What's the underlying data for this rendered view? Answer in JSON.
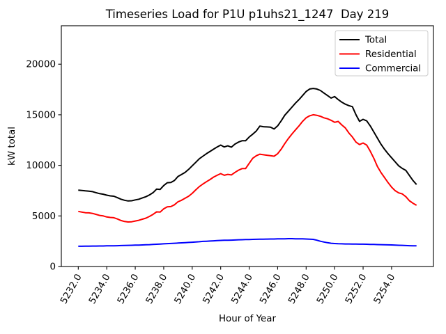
{
  "figure": {
    "background": "#ffffff"
  },
  "chart_data": {
    "type": "line",
    "title": "Timeseries Load for P1U p1uhs21_1247  Day 219",
    "xlabel": "Hour of Year",
    "ylabel": "kW total",
    "grid": false,
    "legend_position": "upper right",
    "xlim": [
      5230.81,
      5256.94
    ],
    "ylim": [
      0,
      23800
    ],
    "x_ticks": [
      5232,
      5234,
      5236,
      5238,
      5240,
      5242,
      5244,
      5246,
      5248,
      5250,
      5252,
      5254
    ],
    "x_tick_labels": [
      "5232.0",
      "5234.0",
      "5236.0",
      "5238.0",
      "5240.0",
      "5242.0",
      "5244.0",
      "5246.0",
      "5248.0",
      "5250.0",
      "5252.0",
      "5254.0"
    ],
    "y_ticks": [
      0,
      5000,
      10000,
      15000,
      20000
    ],
    "y_tick_labels": [
      "0",
      "5000",
      "10000",
      "15000",
      "20000"
    ],
    "x": [
      5232,
      5232.25,
      5232.5,
      5232.75,
      5233,
      5233.25,
      5233.5,
      5233.75,
      5234,
      5234.25,
      5234.5,
      5234.75,
      5235,
      5235.25,
      5235.5,
      5235.75,
      5236,
      5236.25,
      5236.5,
      5236.75,
      5237,
      5237.25,
      5237.5,
      5237.75,
      5238,
      5238.25,
      5238.5,
      5238.75,
      5239,
      5239.25,
      5239.5,
      5239.75,
      5240,
      5240.25,
      5240.5,
      5240.75,
      5241,
      5241.25,
      5241.5,
      5241.75,
      5242,
      5242.25,
      5242.5,
      5242.75,
      5243,
      5243.25,
      5243.5,
      5243.75,
      5244,
      5244.25,
      5244.5,
      5244.75,
      5245,
      5245.25,
      5245.5,
      5245.75,
      5246,
      5246.25,
      5246.5,
      5246.75,
      5247,
      5247.25,
      5247.5,
      5247.75,
      5248,
      5248.25,
      5248.5,
      5248.75,
      5249,
      5249.25,
      5249.5,
      5249.75,
      5250,
      5250.25,
      5250.5,
      5250.75,
      5251,
      5251.25,
      5251.5,
      5251.75,
      5252,
      5252.25,
      5252.5,
      5252.75,
      5253,
      5253.25,
      5253.5,
      5253.75,
      5254,
      5254.25,
      5254.5,
      5254.75,
      5255,
      5255.25,
      5255.5,
      5255.75
    ],
    "series": [
      {
        "name": "Total",
        "color": "#000000",
        "values": [
          7550,
          7520,
          7480,
          7450,
          7400,
          7300,
          7200,
          7150,
          7050,
          6980,
          6950,
          6800,
          6650,
          6550,
          6480,
          6500,
          6580,
          6650,
          6780,
          6900,
          7080,
          7300,
          7650,
          7620,
          8000,
          8280,
          8300,
          8500,
          8900,
          9100,
          9300,
          9600,
          9950,
          10300,
          10650,
          10900,
          11150,
          11380,
          11600,
          11820,
          12000,
          11820,
          11930,
          11800,
          12100,
          12300,
          12430,
          12430,
          12800,
          13080,
          13400,
          13880,
          13820,
          13800,
          13780,
          13590,
          13900,
          14400,
          14950,
          15350,
          15750,
          16150,
          16500,
          16900,
          17300,
          17550,
          17600,
          17550,
          17400,
          17150,
          16900,
          16650,
          16800,
          16500,
          16250,
          16050,
          15900,
          15800,
          15000,
          14350,
          14550,
          14400,
          13900,
          13300,
          12700,
          12100,
          11600,
          11150,
          10750,
          10350,
          9950,
          9700,
          9500,
          9000,
          8500,
          8100
        ]
      },
      {
        "name": "Residential",
        "color": "#ff0000",
        "values": [
          5450,
          5380,
          5320,
          5300,
          5250,
          5150,
          5050,
          5000,
          4900,
          4850,
          4820,
          4700,
          4550,
          4450,
          4400,
          4420,
          4500,
          4570,
          4680,
          4780,
          4950,
          5150,
          5400,
          5380,
          5700,
          5900,
          5920,
          6100,
          6400,
          6550,
          6750,
          6950,
          7230,
          7570,
          7900,
          8150,
          8380,
          8600,
          8840,
          9020,
          9180,
          9020,
          9110,
          9050,
          9300,
          9520,
          9680,
          9680,
          10200,
          10700,
          10950,
          11100,
          11050,
          11000,
          10950,
          10900,
          11150,
          11600,
          12150,
          12650,
          13100,
          13500,
          13900,
          14350,
          14700,
          14900,
          15000,
          14950,
          14850,
          14700,
          14600,
          14450,
          14250,
          14340,
          14000,
          13700,
          13200,
          12800,
          12300,
          12050,
          12210,
          12000,
          11400,
          10700,
          9900,
          9300,
          8800,
          8300,
          7850,
          7500,
          7280,
          7180,
          6900,
          6500,
          6250,
          6050
        ]
      },
      {
        "name": "Commercial",
        "color": "#0000ff",
        "values": [
          2000,
          2000,
          2010,
          2010,
          2020,
          2020,
          2030,
          2030,
          2040,
          2040,
          2050,
          2060,
          2070,
          2080,
          2090,
          2100,
          2110,
          2120,
          2130,
          2150,
          2160,
          2180,
          2200,
          2220,
          2240,
          2260,
          2280,
          2300,
          2320,
          2340,
          2360,
          2380,
          2400,
          2430,
          2450,
          2480,
          2500,
          2520,
          2540,
          2560,
          2580,
          2590,
          2600,
          2610,
          2620,
          2640,
          2650,
          2660,
          2670,
          2680,
          2690,
          2700,
          2700,
          2710,
          2720,
          2720,
          2730,
          2740,
          2740,
          2750,
          2750,
          2740,
          2740,
          2730,
          2720,
          2700,
          2680,
          2600,
          2500,
          2420,
          2350,
          2300,
          2270,
          2250,
          2240,
          2230,
          2230,
          2220,
          2220,
          2210,
          2210,
          2200,
          2190,
          2180,
          2170,
          2160,
          2150,
          2140,
          2130,
          2110,
          2100,
          2090,
          2070,
          2060,
          2050,
          2040
        ]
      }
    ]
  }
}
